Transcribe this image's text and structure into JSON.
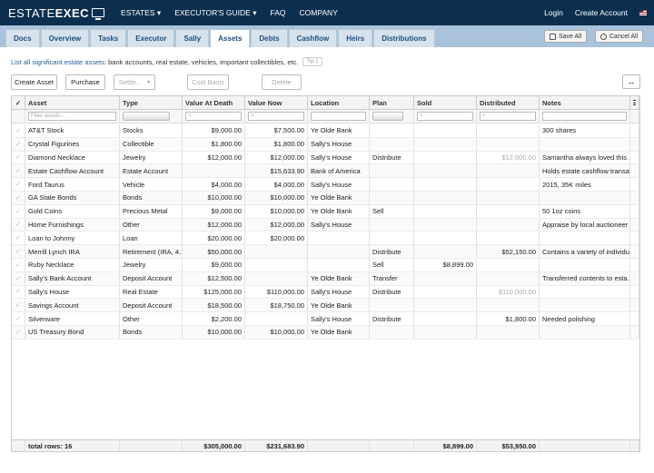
{
  "brand": {
    "part1": "ESTATE",
    "part2": "EXEC"
  },
  "nav": {
    "estates": "ESTATES",
    "guide": "EXECUTOR'S GUIDE",
    "faq": "FAQ",
    "company": "COMPANY",
    "login": "Login",
    "create_account": "Create Account",
    "caret": "▾"
  },
  "tabs": [
    "Docs",
    "Overview",
    "Tasks",
    "Executor",
    "Sally",
    "Assets",
    "Debts",
    "Cashflow",
    "Heirs",
    "Distributions"
  ],
  "active_tab": "Assets",
  "actions": {
    "save_all": "Save All",
    "cancel_all": "Cancel All"
  },
  "instruction": {
    "link": "List all significant estate assets",
    "rest": ": bank accounts, real estate, vehicles, important collectibles, etc.",
    "tip": "Tip 1"
  },
  "toolbar": {
    "create_asset": "Create Asset",
    "purchase": "Purchase",
    "settle": "Settle...",
    "cost_basis": "Cost Basis",
    "delete": "Delete",
    "settle_caret": "▾",
    "expand_glyph": "↔"
  },
  "columns": {
    "asset": "Asset",
    "type": "Type",
    "value_at_death": "Value At Death",
    "value_now": "Value Now",
    "location": "Location",
    "plan": "Plan",
    "sold": "Sold",
    "distributed": "Distributed",
    "notes": "Notes"
  },
  "filters": {
    "asset_placeholder": "Filter assets...",
    "gt": ">",
    "lt": "<"
  },
  "check_glyph": "✓",
  "rows": [
    {
      "asset": "AT&T Stock",
      "type": "Stocks",
      "vad": "$9,000.00",
      "vnow": "$7,500.00",
      "loc": "Ye Olde Bank",
      "plan": "",
      "sold": "",
      "dist": "",
      "dist_muted": false,
      "notes": "300 shares"
    },
    {
      "asset": "Crystal Figurines",
      "type": "Collectible",
      "vad": "$1,800.00",
      "vnow": "$1,800.00",
      "loc": "Sally's House",
      "plan": "",
      "sold": "",
      "dist": "",
      "dist_muted": false,
      "notes": ""
    },
    {
      "asset": "Diamond Necklace",
      "type": "Jewelry",
      "vad": "$12,000.00",
      "vnow": "$12,000.00",
      "loc": "Sally's House",
      "plan": "Distribute",
      "sold": "",
      "dist": "$12,000.00",
      "dist_muted": true,
      "notes": "Samantha always loved this ..."
    },
    {
      "asset": "Estate Cashflow Account",
      "type": "Estate Account",
      "vad": "",
      "vnow": "$15,633.90",
      "loc": "Bank of America",
      "plan": "",
      "sold": "",
      "dist": "",
      "dist_muted": false,
      "notes": "Holds estate cashflow transa..."
    },
    {
      "asset": "Ford Taurus",
      "type": "Vehicle",
      "vad": "$4,000.00",
      "vnow": "$4,000.00",
      "loc": "Sally's House",
      "plan": "",
      "sold": "",
      "dist": "",
      "dist_muted": false,
      "notes": "2015, 35K miles"
    },
    {
      "asset": "GA State Bonds",
      "type": "Bonds",
      "vad": "$10,000.00",
      "vnow": "$10,000.00",
      "loc": "Ye Olde Bank",
      "plan": "",
      "sold": "",
      "dist": "",
      "dist_muted": false,
      "notes": ""
    },
    {
      "asset": "Gold Coins",
      "type": "Precious Metal",
      "vad": "$9,000.00",
      "vnow": "$10,000.00",
      "loc": "Ye Olde Bank",
      "plan": "Sell",
      "sold": "",
      "dist": "",
      "dist_muted": false,
      "notes": "50 1oz coins"
    },
    {
      "asset": "Home Furnishings",
      "type": "Other",
      "vad": "$12,000.00",
      "vnow": "$12,000.00",
      "loc": "Sally's House",
      "plan": "",
      "sold": "",
      "dist": "",
      "dist_muted": false,
      "notes": "Appraise by local auctioneer"
    },
    {
      "asset": "Loan to Johnny",
      "type": "Loan",
      "vad": "$20,000.00",
      "vnow": "$20,000.00",
      "loc": "",
      "plan": "",
      "sold": "",
      "dist": "",
      "dist_muted": false,
      "notes": ""
    },
    {
      "asset": "Merrill Lynch IRA",
      "type": "Retirement (IRA, 4...",
      "vad": "$50,000.00",
      "vnow": "",
      "loc": "",
      "plan": "Distribute",
      "sold": "",
      "dist": "$52,150.00",
      "dist_muted": false,
      "notes": "Contains a variety of individu..."
    },
    {
      "asset": "Ruby Necklace",
      "type": "Jewelry",
      "vad": "$9,000.00",
      "vnow": "",
      "loc": "",
      "plan": "Sell",
      "sold": "$8,899.00",
      "dist": "",
      "dist_muted": false,
      "notes": ""
    },
    {
      "asset": "Sally's Bank Account",
      "type": "Deposit Account",
      "vad": "$12,500.00",
      "vnow": "",
      "loc": "Ye Olde Bank",
      "plan": "Transfer",
      "sold": "",
      "dist": "",
      "dist_muted": false,
      "notes": "Transferred contents to esta..."
    },
    {
      "asset": "Sally's House",
      "type": "Real Estate",
      "vad": "$125,000.00",
      "vnow": "$110,000.00",
      "loc": "Sally's House",
      "plan": "Distribute",
      "sold": "",
      "dist": "$110,000.00",
      "dist_muted": true,
      "notes": ""
    },
    {
      "asset": "Savings Account",
      "type": "Deposit Account",
      "vad": "$18,500.00",
      "vnow": "$18,750.00",
      "loc": "Ye Olde Bank",
      "plan": "",
      "sold": "",
      "dist": "",
      "dist_muted": false,
      "notes": ""
    },
    {
      "asset": "Silverware",
      "type": "Other",
      "vad": "$2,200.00",
      "vnow": "",
      "loc": "Sally's House",
      "plan": "Distribute",
      "sold": "",
      "dist": "$1,800.00",
      "dist_muted": false,
      "notes": "Needed polishing"
    },
    {
      "asset": "US Treasury Bond",
      "type": "Bonds",
      "vad": "$10,000.00",
      "vnow": "$10,000.00",
      "loc": "Ye Olde Bank",
      "plan": "",
      "sold": "",
      "dist": "",
      "dist_muted": false,
      "notes": ""
    }
  ],
  "totals": {
    "label": "total rows: 16",
    "vad": "$305,000.00",
    "vnow": "$231,683.90",
    "sold": "$8,899.00",
    "dist": "$53,950.00"
  }
}
